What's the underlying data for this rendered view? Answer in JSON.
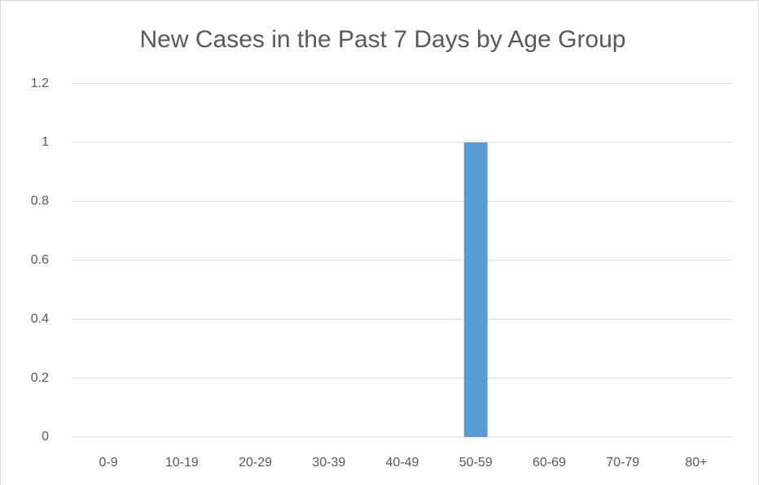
{
  "chart_data": {
    "type": "bar",
    "title": "New Cases in the Past 7 Days by Age Group",
    "categories": [
      "0-9",
      "10-19",
      "20-29",
      "30-39",
      "40-49",
      "50-59",
      "60-69",
      "70-79",
      "80+"
    ],
    "values": [
      0,
      0,
      0,
      0,
      0,
      1,
      0,
      0,
      0
    ],
    "color": "#5b9bd5",
    "ylim": [
      0,
      1.2
    ],
    "yticks": [
      0,
      0.2,
      0.4,
      0.6,
      0.8,
      1,
      1.2
    ],
    "grid": true
  }
}
